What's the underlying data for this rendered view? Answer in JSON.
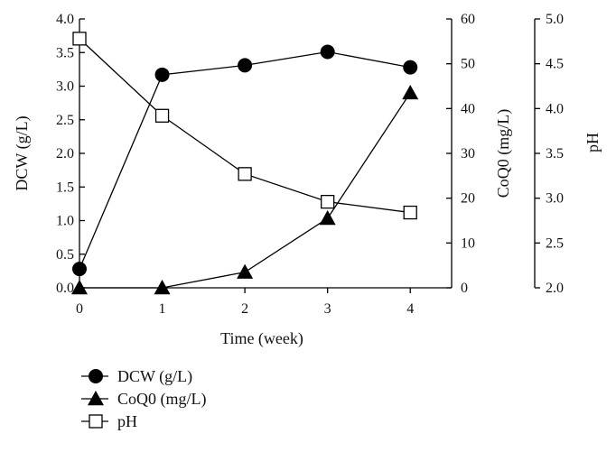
{
  "chart_data": {
    "type": "line",
    "xlabel": "Time (week)",
    "x": [
      0,
      1,
      2,
      3,
      4
    ],
    "xlim": [
      0,
      4.5
    ],
    "xticks": [
      "0",
      "1",
      "2",
      "3",
      "4"
    ],
    "axes": {
      "dcw": {
        "label": "DCW (g/L)",
        "ylim": [
          0,
          4.0
        ],
        "ticks": [
          "0.0",
          "0.5",
          "1.0",
          "1.5",
          "2.0",
          "2.5",
          "3.0",
          "3.5",
          "4.0"
        ]
      },
      "coq0": {
        "label": "CoQ0 (mg/L)",
        "ylim": [
          0,
          60
        ],
        "ticks": [
          "0",
          "10",
          "20",
          "30",
          "40",
          "50",
          "60"
        ]
      },
      "ph": {
        "label": "pH",
        "ylim": [
          2.0,
          5.0
        ],
        "ticks": [
          "2.0",
          "2.5",
          "3.0",
          "3.5",
          "4.0",
          "4.5",
          "5.0"
        ]
      }
    },
    "series": [
      {
        "name": "DCW (g/L)",
        "axis": "dcw",
        "marker": "filled-circle",
        "values": [
          0.28,
          3.17,
          3.31,
          3.51,
          3.28
        ]
      },
      {
        "name": "CoQ0 (mg/L)",
        "axis": "coq0",
        "marker": "filled-triangle",
        "values": [
          0,
          0,
          3.5,
          15.5,
          43.5
        ]
      },
      {
        "name": "pH",
        "axis": "ph",
        "marker": "open-square",
        "values": [
          4.78,
          3.92,
          3.27,
          2.96,
          2.84
        ]
      }
    ],
    "legend": [
      "DCW (g/L)",
      "CoQ0 (mg/L)",
      "pH"
    ],
    "legend_position": "bottom-left, below plot"
  }
}
